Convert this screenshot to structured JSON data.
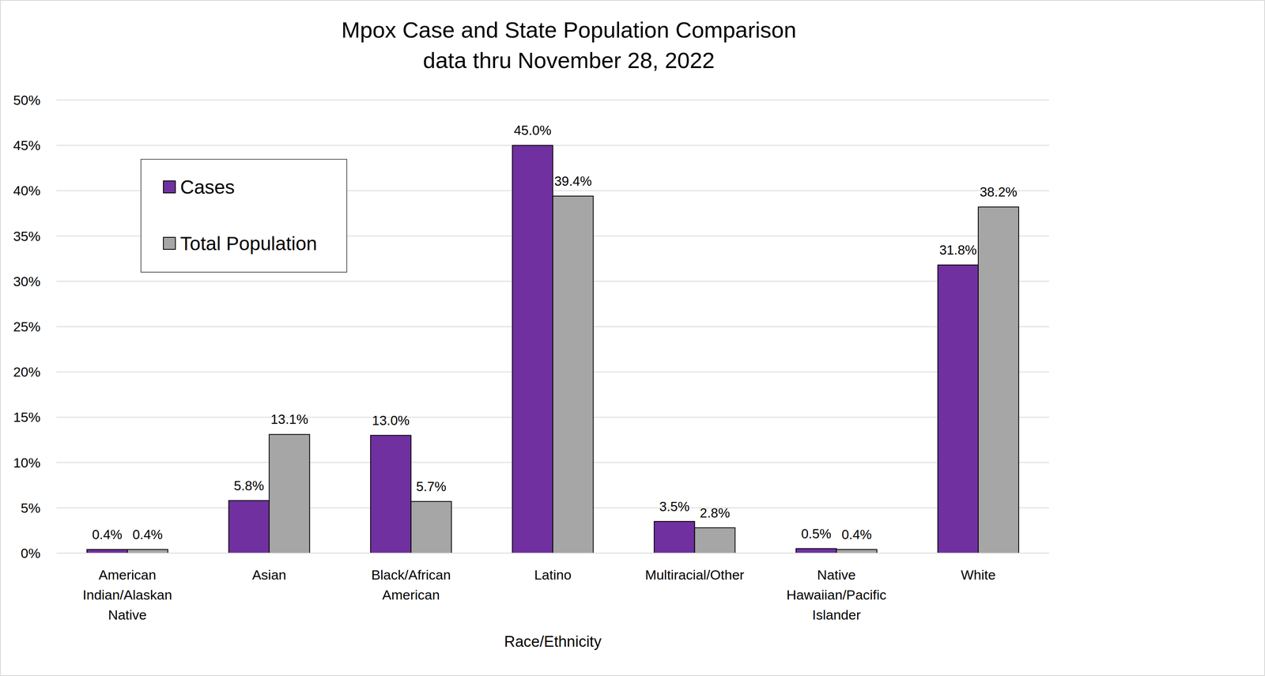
{
  "chart_data": {
    "type": "bar",
    "title": "Mpox Case and State Population Comparison",
    "subtitle": "data thru November 28, 2022",
    "x_label": "Race/Ethnicity",
    "categories": [
      "American Indian/Alaskan Native",
      "Asian",
      "Black/African American",
      "Latino",
      "Multiracial/Other",
      "Native Hawaiian/Pacific Islander",
      "White"
    ],
    "series": [
      {
        "name": "Cases",
        "color": "#7030a0",
        "values": [
          0.4,
          5.8,
          13.0,
          45.0,
          3.5,
          0.5,
          31.8
        ],
        "value_labels": [
          "0.4%",
          "5.8%",
          "13.0%",
          "45.0%",
          "3.5%",
          "0.5%",
          "31.8%"
        ]
      },
      {
        "name": "Total Population",
        "color": "#a6a6a6",
        "values": [
          0.4,
          13.1,
          5.7,
          39.4,
          2.8,
          0.4,
          38.2
        ],
        "value_labels": [
          "0.4%",
          "13.1%",
          "5.7%",
          "39.4%",
          "2.8%",
          "0.4%",
          "38.2%"
        ]
      }
    ],
    "ylim": [
      0,
      50
    ],
    "yticks": [
      {
        "value": 0,
        "label": "0%"
      },
      {
        "value": 5,
        "label": "5%"
      },
      {
        "value": 10,
        "label": "10%"
      },
      {
        "value": 15,
        "label": "15%"
      },
      {
        "value": 20,
        "label": "20%"
      },
      {
        "value": 25,
        "label": "25%"
      },
      {
        "value": 30,
        "label": "30%"
      },
      {
        "value": 35,
        "label": "35%"
      },
      {
        "value": 40,
        "label": "40%"
      },
      {
        "value": 45,
        "label": "45%"
      },
      {
        "value": 50,
        "label": "50%"
      }
    ],
    "grid": true,
    "legend": "upper left",
    "data_labels": true
  }
}
